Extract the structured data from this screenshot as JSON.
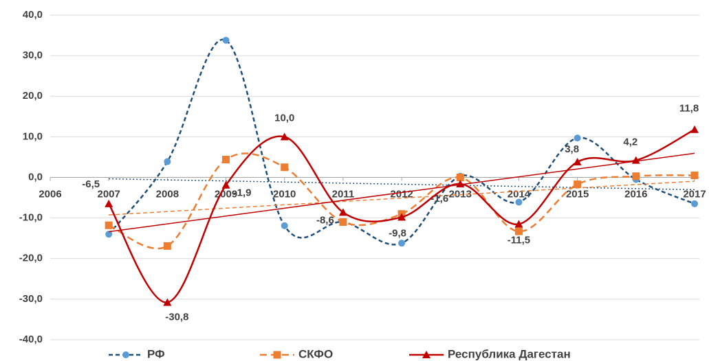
{
  "chart_data": {
    "type": "line",
    "x": [
      2007,
      2008,
      2009,
      2010,
      2011,
      2012,
      2013,
      2014,
      2015,
      2016,
      2017
    ],
    "xlim": [
      2006,
      2017
    ],
    "xticks": [
      2006,
      2007,
      2008,
      2009,
      2010,
      2011,
      2012,
      2013,
      2014,
      2015,
      2016,
      2017
    ],
    "ylim": [
      -40,
      40
    ],
    "yticks": [
      {
        "value": -40,
        "label": "-40,0"
      },
      {
        "value": -30,
        "label": "-30,0"
      },
      {
        "value": -20,
        "label": "-20,0"
      },
      {
        "value": -10,
        "label": "-10,0"
      },
      {
        "value": 0,
        "label": "0,0"
      },
      {
        "value": 10,
        "label": "10,0"
      },
      {
        "value": 20,
        "label": "20,0"
      },
      {
        "value": 30,
        "label": "30,0"
      },
      {
        "value": 40,
        "label": "40,0"
      }
    ],
    "grid": true,
    "legend": "bottom",
    "series": [
      {
        "name": "РФ",
        "color": "#5b9bd5",
        "line_color": "#1f4e79",
        "values": [
          -14.0,
          3.9,
          33.8,
          -11.9,
          -11.0,
          -16.2,
          0.3,
          -6.1,
          9.7,
          -0.5,
          -6.5
        ]
      },
      {
        "name": "СКФО",
        "color": "#ed7d31",
        "line_color": "#ed7d31",
        "values": [
          -11.8,
          -16.9,
          4.4,
          2.5,
          -11.0,
          -9.0,
          0.0,
          -13.3,
          -1.7,
          0.3,
          0.5
        ]
      },
      {
        "name": "Республика Дагестан",
        "color": "#c00000",
        "line_color": "#c00000",
        "values": [
          -6.5,
          -30.8,
          -1.9,
          10.0,
          -8.6,
          -9.8,
          -1.6,
          -11.5,
          3.8,
          4.2,
          11.8
        ],
        "value_labels": [
          "-6,5",
          "-30,8",
          "-1,9",
          "10,0",
          "-8,6",
          "-9,8",
          "-1,6",
          "-11,5",
          "3,8",
          "4,2",
          "11,8"
        ]
      }
    ]
  }
}
